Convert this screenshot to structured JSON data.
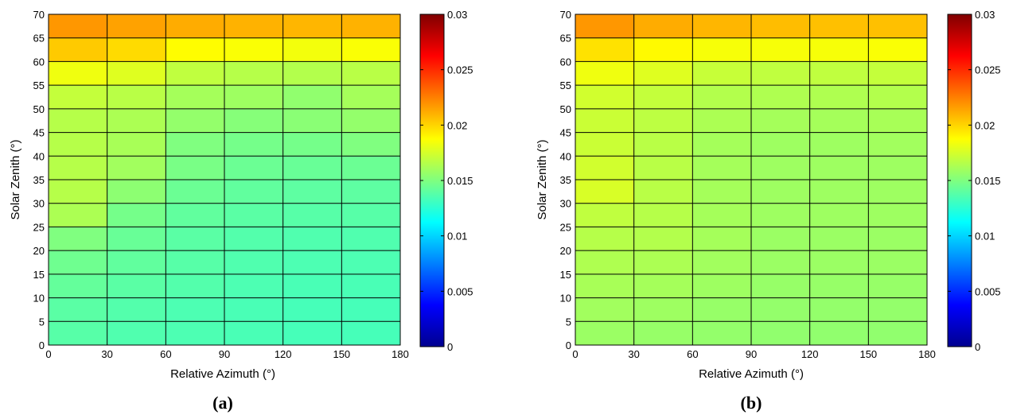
{
  "chart_data": [
    {
      "type": "heatmap",
      "panel_label": "(a)",
      "xlabel": "Relative Azimuth (°)",
      "ylabel": "Solar Zenith (°)",
      "x_ticks": [
        "0",
        "30",
        "60",
        "90",
        "120",
        "150",
        "180"
      ],
      "y_ticks": [
        "0",
        "5",
        "10",
        "15",
        "20",
        "25",
        "30",
        "35",
        "40",
        "45",
        "50",
        "55",
        "60",
        "65",
        "70"
      ],
      "x_edges": [
        0,
        30,
        60,
        90,
        120,
        150,
        180
      ],
      "y_edges": [
        0,
        5,
        10,
        15,
        20,
        25,
        30,
        35,
        40,
        45,
        50,
        55,
        60,
        65,
        70
      ],
      "xlim": [
        0,
        180
      ],
      "ylim": [
        0,
        70
      ],
      "grid": true,
      "colorbar": {
        "colormap": "jet",
        "range": [
          0,
          0.03
        ],
        "ticks": [
          "0",
          "0.005",
          "0.01",
          "0.015",
          "0.02",
          "0.025",
          "0.03"
        ]
      },
      "values": [
        [
          0.0138,
          0.0136,
          0.0135,
          0.0134,
          0.0133,
          0.0133
        ],
        [
          0.0139,
          0.0137,
          0.0135,
          0.0134,
          0.0133,
          0.0133
        ],
        [
          0.0142,
          0.0139,
          0.0137,
          0.0135,
          0.0134,
          0.0134
        ],
        [
          0.0145,
          0.0141,
          0.0138,
          0.0136,
          0.0135,
          0.0135
        ],
        [
          0.015,
          0.0143,
          0.0139,
          0.0137,
          0.0136,
          0.0136
        ],
        [
          0.0163,
          0.0147,
          0.0141,
          0.0139,
          0.0138,
          0.0138
        ],
        [
          0.0166,
          0.0154,
          0.0144,
          0.0141,
          0.014,
          0.014
        ],
        [
          0.0166,
          0.016,
          0.0148,
          0.0144,
          0.0143,
          0.0144
        ],
        [
          0.0166,
          0.0162,
          0.015,
          0.0147,
          0.0147,
          0.015
        ],
        [
          0.0166,
          0.0163,
          0.0156,
          0.0152,
          0.0153,
          0.0156
        ],
        [
          0.017,
          0.0167,
          0.0161,
          0.0159,
          0.0155,
          0.0161
        ],
        [
          0.0183,
          0.0178,
          0.0169,
          0.0166,
          0.0165,
          0.0167
        ],
        [
          0.0203,
          0.0198,
          0.0188,
          0.0186,
          0.0184,
          0.0186
        ],
        [
          0.0218,
          0.0215,
          0.0212,
          0.021,
          0.0209,
          0.021
        ],
        [
          0.025,
          0.0245,
          0.024,
          0.0235,
          0.0232,
          0.0228
        ]
      ]
    },
    {
      "type": "heatmap",
      "panel_label": "(b)",
      "xlabel": "Relative Azimuth (°)",
      "ylabel": "Solar Zenith (°)",
      "x_ticks": [
        "0",
        "30",
        "60",
        "90",
        "120",
        "150",
        "180"
      ],
      "y_ticks": [
        "0",
        "5",
        "10",
        "15",
        "20",
        "25",
        "30",
        "35",
        "40",
        "45",
        "50",
        "55",
        "60",
        "65",
        "70"
      ],
      "x_edges": [
        0,
        30,
        60,
        90,
        120,
        150,
        180
      ],
      "y_edges": [
        0,
        5,
        10,
        15,
        20,
        25,
        30,
        35,
        40,
        45,
        50,
        55,
        60,
        65,
        70
      ],
      "xlim": [
        0,
        180
      ],
      "ylim": [
        0,
        70
      ],
      "grid": true,
      "colorbar": {
        "colormap": "jet",
        "range": [
          0,
          0.03
        ],
        "ticks": [
          "0",
          "0.005",
          "0.01",
          "0.015",
          "0.02",
          "0.025",
          "0.03"
        ]
      },
      "values": [
        [
          0.0158,
          0.0157,
          0.0156,
          0.0155,
          0.0155,
          0.0155
        ],
        [
          0.016,
          0.0159,
          0.0157,
          0.0156,
          0.0156,
          0.0156
        ],
        [
          0.0162,
          0.0161,
          0.0159,
          0.0157,
          0.0157,
          0.0157
        ],
        [
          0.0164,
          0.0163,
          0.016,
          0.0158,
          0.0158,
          0.0158
        ],
        [
          0.0166,
          0.0165,
          0.0161,
          0.0158,
          0.0158,
          0.0158
        ],
        [
          0.0169,
          0.0166,
          0.0161,
          0.0159,
          0.0159,
          0.0159
        ],
        [
          0.0176,
          0.0167,
          0.0161,
          0.0159,
          0.0159,
          0.0159
        ],
        [
          0.0174,
          0.0167,
          0.0161,
          0.0159,
          0.0159,
          0.0159
        ],
        [
          0.0172,
          0.0167,
          0.0161,
          0.0159,
          0.0159,
          0.016
        ],
        [
          0.0172,
          0.0168,
          0.0163,
          0.0161,
          0.0161,
          0.0162
        ],
        [
          0.0174,
          0.017,
          0.0165,
          0.0164,
          0.0164,
          0.0165
        ],
        [
          0.0183,
          0.0178,
          0.0171,
          0.0169,
          0.0169,
          0.017
        ],
        [
          0.0196,
          0.0189,
          0.0185,
          0.0185,
          0.0185,
          0.0186
        ],
        [
          0.0218,
          0.0212,
          0.0209,
          0.0207,
          0.0206,
          0.0206
        ],
        [
          0.0245,
          0.0238,
          0.0232,
          0.0228,
          0.0226,
          0.0225
        ]
      ]
    }
  ]
}
